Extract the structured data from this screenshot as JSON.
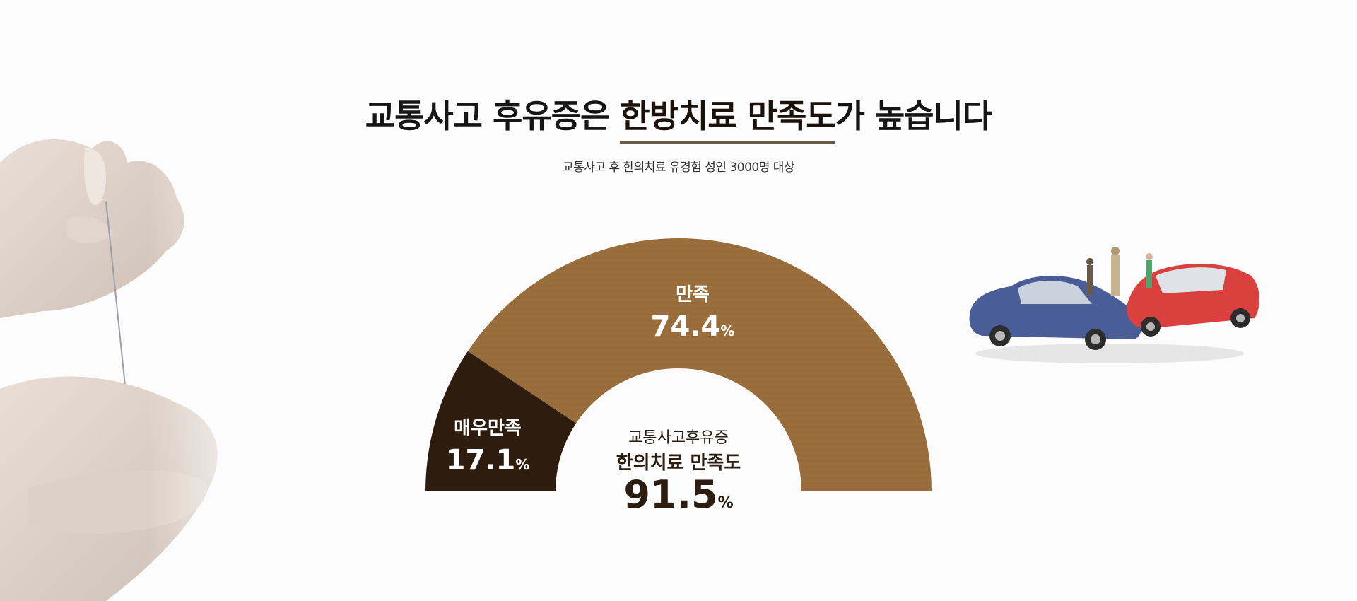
{
  "header": {
    "title_pre": "교통사고 후유증은 ",
    "title_highlight": "한방치료 만족도",
    "title_post": "가 높습니다",
    "subtitle": "교통사고 후 한의치료 유경험 성인 3000명 대상"
  },
  "chart_data": {
    "type": "pie",
    "subtype": "semi-donut",
    "slices": [
      {
        "label": "매우만족",
        "value": 17.1,
        "unit": "%",
        "color": "#2e1c0e"
      },
      {
        "label": "만족",
        "value": 74.4,
        "unit": "%",
        "color": "#9a6e3c"
      }
    ],
    "center": {
      "line1": "교통사고후유증",
      "line2": "한의치료 만족도",
      "value": 91.5,
      "unit": "%"
    }
  },
  "images": {
    "left": "acupuncture-hands-photo",
    "right": "toy-car-accident-photo"
  }
}
